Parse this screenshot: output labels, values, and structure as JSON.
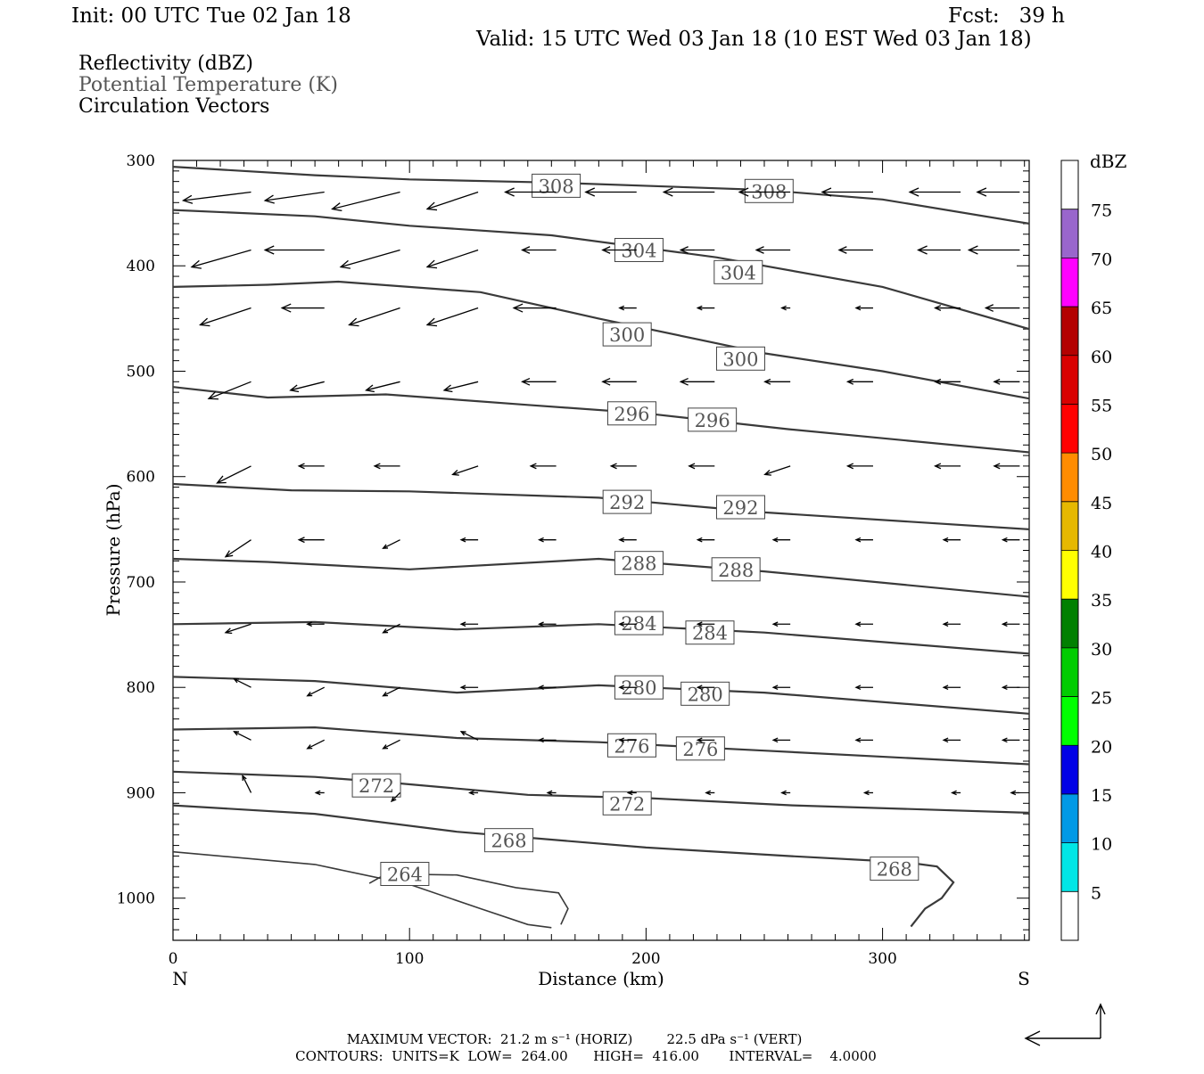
{
  "header": {
    "init": "Init: 00 UTC Tue 02 Jan 18",
    "fcst": "Fcst:   39 h",
    "valid": "Valid: 15 UTC Wed 03 Jan 18 (10 EST Wed 03 Jan 18)"
  },
  "fields": [
    {
      "label": "Reflectivity (dBZ)",
      "color": "#000000"
    },
    {
      "label": "Potential Temperature (K)",
      "color": "#555555"
    },
    {
      "label": "Circulation Vectors",
      "color": "#000000"
    }
  ],
  "chart_data": {
    "type": "cross-section",
    "xlabel": "Distance (km)",
    "ylabel": "Pressure (hPa)",
    "xlim": [
      0,
      362
    ],
    "ylim": [
      300,
      1040
    ],
    "x_ticks": [
      0,
      100,
      200,
      300
    ],
    "y_ticks": [
      300,
      400,
      500,
      600,
      700,
      800,
      900,
      1000
    ],
    "x_ends": [
      "N",
      "S"
    ],
    "colorbar": {
      "title": "dBZ",
      "range": [
        0,
        80
      ],
      "labels": [
        5,
        10,
        15,
        20,
        25,
        30,
        35,
        40,
        45,
        50,
        55,
        60,
        65,
        70,
        75
      ],
      "bins": [
        {
          "from": 0,
          "to": 5,
          "color": "#ffffff"
        },
        {
          "from": 5,
          "to": 10,
          "color": "#00e6e6"
        },
        {
          "from": 10,
          "to": 15,
          "color": "#0099e6"
        },
        {
          "from": 15,
          "to": 20,
          "color": "#0000e6"
        },
        {
          "from": 20,
          "to": 25,
          "color": "#00ff00"
        },
        {
          "from": 25,
          "to": 30,
          "color": "#00cc00"
        },
        {
          "from": 30,
          "to": 35,
          "color": "#008000"
        },
        {
          "from": 35,
          "to": 40,
          "color": "#ffff00"
        },
        {
          "from": 40,
          "to": 45,
          "color": "#e6b800"
        },
        {
          "from": 45,
          "to": 50,
          "color": "#ff8c00"
        },
        {
          "from": 50,
          "to": 55,
          "color": "#ff0000"
        },
        {
          "from": 55,
          "to": 60,
          "color": "#d90000"
        },
        {
          "from": 60,
          "to": 65,
          "color": "#b30000"
        },
        {
          "from": 65,
          "to": 70,
          "color": "#ff00ff"
        },
        {
          "from": 70,
          "to": 75,
          "color": "#9966cc"
        },
        {
          "from": 75,
          "to": 80,
          "color": "#ffffff"
        }
      ]
    },
    "isentropes": [
      {
        "theta": 308,
        "points": [
          [
            0,
            306
          ],
          [
            60,
            314
          ],
          [
            100,
            318
          ],
          [
            160,
            321
          ],
          [
            250,
            328
          ],
          [
            300,
            337
          ],
          [
            362,
            360
          ]
        ],
        "labels": [
          [
            162,
            324
          ],
          [
            252,
            329
          ]
        ]
      },
      {
        "theta": 304,
        "points": [
          [
            0,
            347
          ],
          [
            60,
            353
          ],
          [
            100,
            362
          ],
          [
            160,
            371
          ],
          [
            230,
            392
          ],
          [
            300,
            420
          ],
          [
            362,
            460
          ]
        ],
        "labels": [
          [
            197,
            385
          ],
          [
            239,
            406
          ]
        ]
      },
      {
        "theta": 300,
        "points": [
          [
            0,
            420
          ],
          [
            40,
            418
          ],
          [
            70,
            415
          ],
          [
            130,
            425
          ],
          [
            180,
            450
          ],
          [
            250,
            483
          ],
          [
            300,
            500
          ],
          [
            362,
            526
          ]
        ],
        "labels": [
          [
            192,
            465
          ],
          [
            240,
            488
          ]
        ]
      },
      {
        "theta": 296,
        "points": [
          [
            0,
            515
          ],
          [
            40,
            525
          ],
          [
            90,
            522
          ],
          [
            150,
            532
          ],
          [
            200,
            540
          ],
          [
            260,
            555
          ],
          [
            362,
            577
          ]
        ],
        "labels": [
          [
            194,
            540
          ],
          [
            228,
            546
          ]
        ]
      },
      {
        "theta": 292,
        "points": [
          [
            0,
            607
          ],
          [
            50,
            613
          ],
          [
            100,
            614
          ],
          [
            180,
            620
          ],
          [
            250,
            634
          ],
          [
            362,
            650
          ]
        ],
        "labels": [
          [
            192,
            624
          ],
          [
            240,
            629
          ]
        ]
      },
      {
        "theta": 288,
        "points": [
          [
            0,
            678
          ],
          [
            40,
            681
          ],
          [
            100,
            688
          ],
          [
            180,
            678
          ],
          [
            250,
            690
          ],
          [
            362,
            714
          ]
        ],
        "labels": [
          [
            197,
            682
          ],
          [
            238,
            688
          ]
        ]
      },
      {
        "theta": 284,
        "points": [
          [
            0,
            740
          ],
          [
            60,
            738
          ],
          [
            120,
            745
          ],
          [
            180,
            740
          ],
          [
            250,
            748
          ],
          [
            362,
            768
          ]
        ],
        "labels": [
          [
            197,
            739
          ],
          [
            227,
            748
          ]
        ]
      },
      {
        "theta": 280,
        "points": [
          [
            0,
            790
          ],
          [
            60,
            794
          ],
          [
            120,
            805
          ],
          [
            180,
            798
          ],
          [
            250,
            805
          ],
          [
            362,
            825
          ]
        ],
        "labels": [
          [
            197,
            800
          ],
          [
            225,
            806
          ]
        ]
      },
      {
        "theta": 276,
        "points": [
          [
            0,
            840
          ],
          [
            60,
            838
          ],
          [
            120,
            848
          ],
          [
            180,
            852
          ],
          [
            250,
            860
          ],
          [
            362,
            873
          ]
        ],
        "labels": [
          [
            194,
            855
          ],
          [
            223,
            858
          ]
        ]
      },
      {
        "theta": 272,
        "points": [
          [
            0,
            880
          ],
          [
            60,
            885
          ],
          [
            90,
            890
          ],
          [
            150,
            902
          ],
          [
            200,
            905
          ],
          [
            262,
            912
          ],
          [
            362,
            919
          ]
        ],
        "labels": [
          [
            86,
            893
          ],
          [
            192,
            910
          ]
        ]
      },
      {
        "theta": 268,
        "points": [
          [
            0,
            912
          ],
          [
            60,
            920
          ],
          [
            120,
            937
          ],
          [
            200,
            952
          ],
          [
            260,
            960
          ],
          [
            310,
            966
          ],
          [
            323,
            970
          ],
          [
            330,
            985
          ],
          [
            325,
            1000
          ],
          [
            318,
            1010
          ],
          [
            312,
            1027
          ]
        ],
        "labels": [
          [
            142,
            945
          ],
          [
            305,
            972
          ]
        ]
      },
      {
        "theta": 264,
        "points": [
          [
            0,
            956
          ],
          [
            60,
            968
          ],
          [
            100,
            987
          ],
          [
            130,
            1010
          ],
          [
            150,
            1025
          ],
          [
            160,
            1028
          ]
        ],
        "labels": []
      },
      {
        "theta": 264,
        "points": [
          [
            83,
            986
          ],
          [
            90,
            977
          ],
          [
            120,
            978
          ],
          [
            145,
            990
          ],
          [
            163,
            995
          ],
          [
            167,
            1010
          ],
          [
            164,
            1025
          ]
        ],
        "labels": [
          [
            98,
            977
          ]
        ]
      }
    ],
    "vectors": {
      "rows": [
        {
          "p": 330,
          "x": [
            33,
            64,
            96,
            129,
            162,
            196,
            229,
            261,
            296,
            333,
            358
          ],
          "u": [
            -8,
            -7,
            -8,
            -6,
            -6,
            -6,
            -6,
            -6,
            -6,
            -6,
            -5
          ],
          "w": [
            -1,
            -1,
            -2,
            -2,
            0,
            0,
            0,
            0,
            0,
            0,
            0
          ]
        },
        {
          "p": 385,
          "x": [
            33,
            64,
            96,
            129,
            162,
            196,
            229,
            261,
            296,
            333,
            358
          ],
          "u": [
            -7,
            -7,
            -7,
            -6,
            -4,
            -4,
            -4,
            -4,
            -4,
            -5,
            -6
          ],
          "w": [
            -2,
            0,
            -2,
            -2,
            0,
            0,
            0,
            0,
            0,
            0,
            0
          ]
        },
        {
          "p": 440,
          "x": [
            33,
            64,
            96,
            129,
            162,
            196,
            229,
            261,
            296,
            333,
            358
          ],
          "u": [
            -6,
            -5,
            -6,
            -6,
            -5,
            -2,
            -2,
            -1,
            -2,
            -3,
            -4
          ],
          "w": [
            -2,
            0,
            -2,
            -2,
            0,
            0,
            0,
            0,
            0,
            0,
            0
          ]
        },
        {
          "p": 510,
          "x": [
            33,
            64,
            96,
            129,
            162,
            196,
            229,
            261,
            296,
            333,
            358
          ],
          "u": [
            -5,
            -4,
            -4,
            -4,
            -4,
            -4,
            -4,
            -3,
            -3,
            -3,
            -3
          ],
          "w": [
            -2,
            -1,
            -1,
            -1,
            0,
            0,
            0,
            0,
            0,
            0,
            0
          ]
        },
        {
          "p": 590,
          "x": [
            33,
            64,
            96,
            129,
            162,
            196,
            229,
            261,
            296,
            333,
            358
          ],
          "u": [
            -4,
            -3,
            -3,
            -3,
            -3,
            -3,
            -3,
            -3,
            -3,
            -3,
            -3
          ],
          "w": [
            -2,
            0,
            0,
            -1,
            0,
            0,
            0,
            -1,
            0,
            0,
            0
          ]
        },
        {
          "p": 660,
          "x": [
            33,
            64,
            96,
            129,
            162,
            196,
            229,
            261,
            296,
            333,
            358
          ],
          "u": [
            -3,
            -3,
            -2,
            -2,
            -2,
            -2,
            -2,
            -2,
            -2,
            -2,
            -2
          ],
          "w": [
            -2,
            0,
            -1,
            0,
            0,
            0,
            0,
            0,
            0,
            0,
            0
          ]
        },
        {
          "p": 740,
          "x": [
            33,
            64,
            96,
            129,
            162,
            196,
            229,
            261,
            296,
            333,
            358
          ],
          "u": [
            -3,
            -2,
            -2,
            -2,
            -2,
            -2,
            -2,
            -2,
            -2,
            -2,
            -2
          ],
          "w": [
            -1,
            0,
            -1,
            0,
            0,
            0,
            0,
            0,
            0,
            0,
            0
          ]
        },
        {
          "p": 800,
          "x": [
            33,
            64,
            96,
            129,
            162,
            196,
            229,
            261,
            296,
            333,
            358
          ],
          "u": [
            -2,
            -2,
            -2,
            -2,
            -2,
            -2,
            -2,
            -2,
            -2,
            -2,
            -2
          ],
          "w": [
            1,
            -1,
            -1,
            0,
            0,
            0,
            0,
            0,
            0,
            0,
            0
          ]
        },
        {
          "p": 850,
          "x": [
            33,
            64,
            96,
            129,
            162,
            196,
            229,
            261,
            296,
            333,
            358
          ],
          "u": [
            -2,
            -2,
            -2,
            -2,
            -2,
            -2,
            -2,
            -2,
            -2,
            -2,
            -2
          ],
          "w": [
            1,
            -1,
            -1,
            1,
            0,
            0,
            0,
            0,
            0,
            0,
            0
          ]
        },
        {
          "p": 900,
          "x": [
            33,
            64,
            96,
            129,
            162,
            196,
            229,
            261,
            296,
            333,
            358
          ],
          "u": [
            -1,
            -1,
            -1,
            -1,
            -1,
            -1,
            -1,
            -1,
            -1,
            -1,
            -1
          ],
          "w": [
            2,
            0,
            -1,
            0,
            0,
            0,
            0,
            0,
            0,
            0,
            0
          ]
        }
      ]
    },
    "footer": {
      "max_vector": "MAXIMUM VECTOR:  21.2 m s⁻¹ (HORIZ)        22.5 dPa s⁻¹ (VERT)",
      "contours": "CONTOURS:  UNITS=K  LOW=  264.00      HIGH=  416.00       INTERVAL=    4.0000"
    }
  }
}
